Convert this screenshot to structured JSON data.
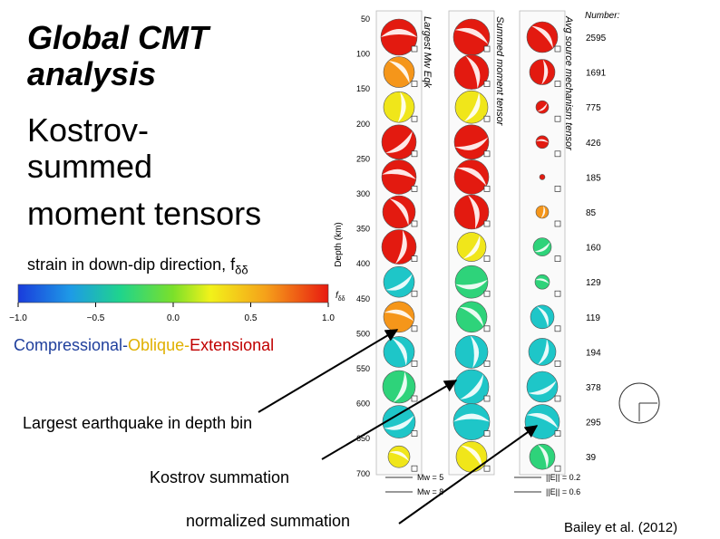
{
  "title": "Global CMT analysis",
  "subtitle_lines": [
    "Kostrov-",
    "summed",
    "moment tensors"
  ],
  "colorbar": {
    "caption": "strain in down-dip direction, f",
    "caption_sub": "δδ",
    "ticks": [
      "−1.0",
      "−0.5",
      "0.0",
      "0.5",
      "1.0"
    ],
    "label": "f",
    "label_sub": "δδ"
  },
  "legend": [
    "Compressional-",
    "Oblique-",
    "Extensional"
  ],
  "annotations": [
    "Largest earthquake in depth bin",
    "Kostrov summation",
    "normalized summation"
  ],
  "citation": "Bailey et al. (2012)",
  "figure": {
    "depth_axis_label": "Depth (km)",
    "depth_ticks": [
      "50",
      "100",
      "150",
      "200",
      "250",
      "300",
      "350",
      "400",
      "450",
      "500",
      "550",
      "600",
      "650",
      "700"
    ],
    "column_headers": [
      "Largest Mw Eqk",
      "Summed moment tensor",
      "Avg source mechanism tensor"
    ],
    "count_header": "Number:",
    "counts": [
      "2595",
      "1691",
      "775",
      "426",
      "185",
      "85",
      "160",
      "129",
      "119",
      "194",
      "378",
      "295",
      "39"
    ],
    "scale_labels": [
      "Mw = 5",
      "Mw = 8",
      "||E|| = 0.2",
      "||E|| = 0.6"
    ]
  }
}
